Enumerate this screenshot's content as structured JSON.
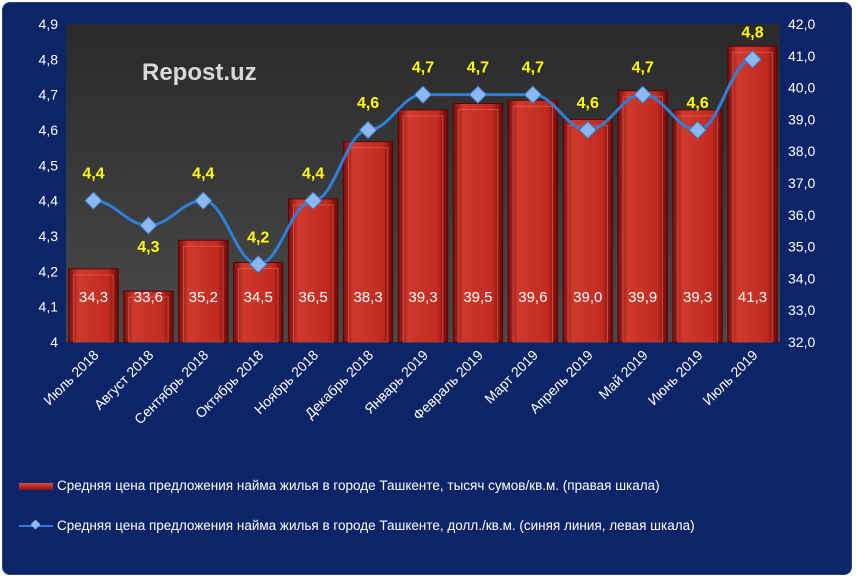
{
  "watermark": "Repost.uz",
  "chart_data": {
    "type": "bar+line",
    "categories": [
      "Июль 2018",
      "Август 2018",
      "Сентябрь 2018",
      "Октябрь 2018",
      "Ноябрь 2018",
      "Декабрь 2018",
      "Январь 2019",
      "Февраль 2019",
      "Март 2019",
      "Апрель 2019",
      "Май 2019",
      "Июнь 2019",
      "Июль 2019"
    ],
    "series": [
      {
        "name": "Средняя цена предложения найма жилья в городе Ташкенте, тысяч сумов/кв.м. (правая шкала)",
        "type": "bar",
        "axis": "right",
        "color": "#b01818",
        "values": [
          34.3,
          33.6,
          35.2,
          34.5,
          36.5,
          38.3,
          39.3,
          39.5,
          39.6,
          39.0,
          39.9,
          39.3,
          41.3
        ],
        "labels": [
          "34,3",
          "33,6",
          "35,2",
          "34,5",
          "36,5",
          "38,3",
          "39,3",
          "39,5",
          "39,6",
          "39,0",
          "39,9",
          "39,3",
          "41,3"
        ]
      },
      {
        "name": "Средняя цена предложения найма жилья в городе Ташкенте, долл./кв.м. (синяя линия, левая шкала)",
        "type": "line",
        "axis": "left",
        "color": "#2e7fd8",
        "values": [
          4.4,
          4.33,
          4.4,
          4.22,
          4.4,
          4.6,
          4.7,
          4.7,
          4.7,
          4.6,
          4.7,
          4.6,
          4.8
        ],
        "labels": [
          "4,4",
          "4,3",
          "4,4",
          "4,2",
          "4,4",
          "4,6",
          "4,7",
          "4,7",
          "4,7",
          "4,6",
          "4,7",
          "4,6",
          "4,8"
        ]
      }
    ],
    "left_axis": {
      "range": [
        4,
        4.9
      ],
      "ticks": [
        "4",
        "4,1",
        "4,2",
        "4,3",
        "4,4",
        "4,5",
        "4,6",
        "4,7",
        "4,8",
        "4,9"
      ]
    },
    "right_axis": {
      "range": [
        32,
        42
      ],
      "ticks": [
        "32,0",
        "33,0",
        "34,0",
        "35,0",
        "36,0",
        "37,0",
        "38,0",
        "39,0",
        "40,0",
        "41,0",
        "42,0"
      ]
    },
    "legend_placement": "bottom"
  }
}
